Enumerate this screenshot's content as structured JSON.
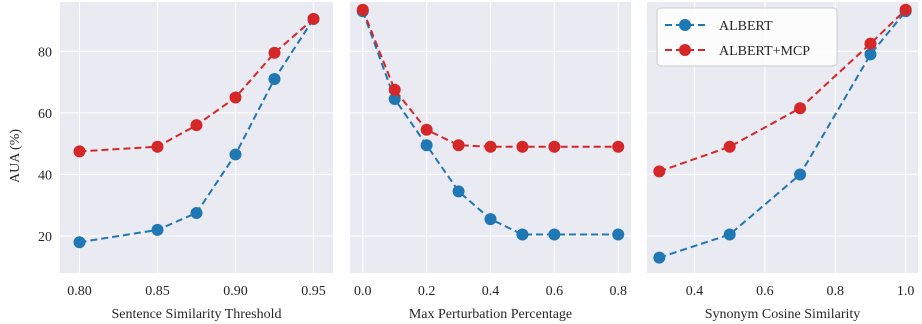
{
  "colors": {
    "series_1": "#1f77b4",
    "series_2": "#d62728",
    "panel_bg": "#eaeaf2",
    "grid": "#ffffff"
  },
  "shared_ylabel": "AUA (%)",
  "legend": [
    "ALBERT",
    "ALBERT+MCP"
  ],
  "chart_data": [
    {
      "type": "line",
      "xlabel": "Sentence Similarity Threshold",
      "ylabel": "AUA (%)",
      "x": [
        0.8,
        0.85,
        0.875,
        0.9,
        0.925,
        0.95
      ],
      "xticks": [
        0.8,
        0.85,
        0.9,
        0.95
      ],
      "xtick_labels": [
        "0.80",
        "0.85",
        "0.90",
        "0.95"
      ],
      "xlim": [
        0.7875,
        0.9625
      ],
      "ylim": [
        8,
        96
      ],
      "yticks": [
        20,
        40,
        60,
        80
      ],
      "ytick_labels": [
        "20",
        "40",
        "60",
        "80"
      ],
      "grid": true,
      "series": [
        {
          "name": "ALBERT",
          "values": [
            18,
            22,
            27.5,
            46.5,
            71,
            90.5
          ]
        },
        {
          "name": "ALBERT+MCP",
          "values": [
            47.5,
            49,
            56,
            65,
            79.5,
            90.5
          ]
        }
      ]
    },
    {
      "type": "line",
      "xlabel": "Max Perturbation Percentage",
      "x": [
        0.0,
        0.1,
        0.2,
        0.3,
        0.4,
        0.5,
        0.6,
        0.8
      ],
      "xticks": [
        0.0,
        0.2,
        0.4,
        0.6,
        0.8
      ],
      "xtick_labels": [
        "0.0",
        "0.2",
        "0.4",
        "0.6",
        "0.8"
      ],
      "xlim": [
        -0.04,
        0.84
      ],
      "ylim": [
        8,
        96
      ],
      "grid": true,
      "series": [
        {
          "name": "ALBERT",
          "values": [
            93,
            64.5,
            49.5,
            34.5,
            25.5,
            20.5,
            20.5,
            20.5
          ]
        },
        {
          "name": "ALBERT+MCP",
          "values": [
            93.5,
            67.5,
            54.5,
            49.5,
            49,
            49,
            49,
            49
          ]
        }
      ]
    },
    {
      "type": "line",
      "xlabel": "Synonym Cosine Similarity",
      "x": [
        0.3,
        0.5,
        0.7,
        0.9,
        1.0
      ],
      "xticks": [
        0.4,
        0.6,
        0.8,
        1.0
      ],
      "xtick_labels": [
        "0.4",
        "0.6",
        "0.8",
        "1.0"
      ],
      "xlim": [
        0.265,
        1.035
      ],
      "ylim": [
        8,
        96
      ],
      "grid": true,
      "legend_position": "top-left",
      "series": [
        {
          "name": "ALBERT",
          "values": [
            13,
            20.5,
            40,
            79,
            93
          ]
        },
        {
          "name": "ALBERT+MCP",
          "values": [
            41,
            49,
            61.5,
            82.5,
            93.5
          ]
        }
      ]
    }
  ]
}
